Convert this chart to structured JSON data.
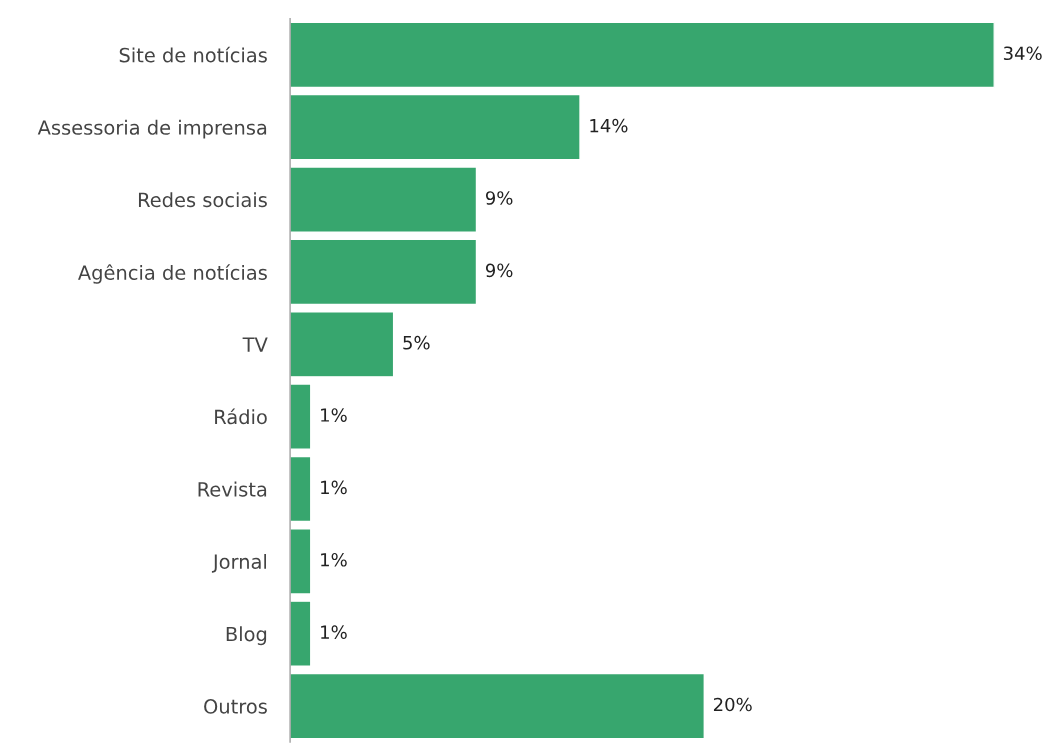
{
  "chart_data": {
    "type": "bar",
    "orientation": "horizontal",
    "categories": [
      "Site de notícias",
      "Assessoria de imprensa",
      "Redes sociais",
      "Agência de notícias",
      "TV",
      "Rádio",
      "Revista",
      "Jornal",
      "Blog",
      "Outros"
    ],
    "values": [
      34,
      14,
      9,
      9,
      5,
      1,
      1,
      1,
      1,
      20
    ],
    "value_labels": [
      "34%",
      "14%",
      "9%",
      "9%",
      "5%",
      "1%",
      "1%",
      "1%",
      "1%",
      "20%"
    ],
    "color": "#37a66e",
    "grid": false,
    "legend": false,
    "tick_labels": "y"
  }
}
